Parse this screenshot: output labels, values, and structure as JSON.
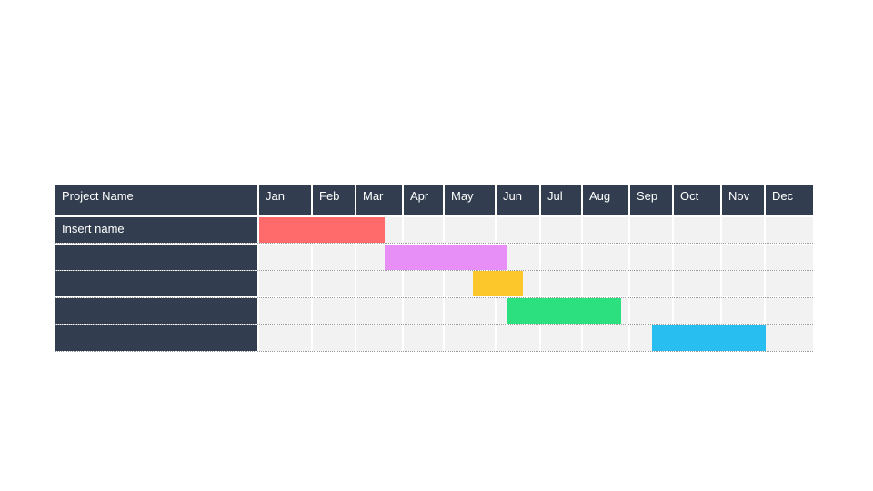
{
  "chart_data": {
    "type": "gantt",
    "header_label": "Project Name",
    "months": [
      "Jan",
      "Feb",
      "Mar",
      "Apr",
      "May",
      "Jun",
      "Jul",
      "Aug",
      "Sep",
      "Oct",
      "Nov",
      "Dec"
    ],
    "tasks": [
      {
        "name": "Insert name",
        "start": 0.0,
        "end": 2.6,
        "color": "#ff6b6b"
      },
      {
        "name": "",
        "start": 2.6,
        "end": 5.25,
        "color": "#e88ef7"
      },
      {
        "name": "",
        "start": 4.55,
        "end": 5.6,
        "color": "#fbc72a"
      },
      {
        "name": "",
        "start": 5.25,
        "end": 7.8,
        "color": "#2ce07f"
      },
      {
        "name": "",
        "start": 8.5,
        "end": 11.0,
        "color": "#28bff0"
      }
    ]
  }
}
